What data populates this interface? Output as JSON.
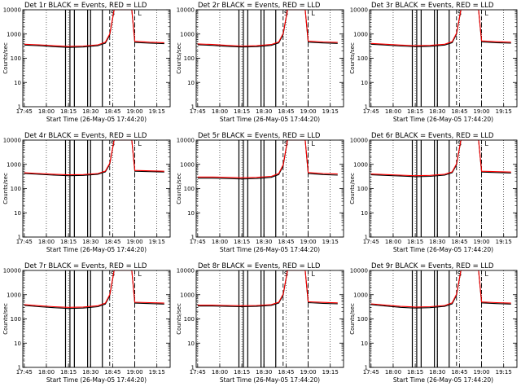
{
  "chart_data": [
    {
      "type": "line",
      "title": "Det 1r BLACK = Events, RED = LLD",
      "ylabel": "Counts/sec",
      "xlabel": "Start Time (26-May-05 17:44:20)",
      "y_scale": "log",
      "ylim": [
        1,
        10000
      ],
      "y_ticks": [
        "1",
        "10",
        "100",
        "1000",
        "10000"
      ],
      "x_ticks": [
        "17:45",
        "18:00",
        "18:15",
        "18:30",
        "18:45",
        "19:00",
        "19:15"
      ],
      "markers": [
        "S",
        "L"
      ],
      "series": [
        {
          "name": "Events",
          "color": "#000000",
          "x": [
            "17:45",
            "17:55",
            "18:05",
            "18:15",
            "18:25",
            "18:35",
            "18:40",
            "18:43",
            "18:46",
            "18:50",
            "18:58",
            "19:00",
            "19:10",
            "19:20"
          ],
          "values": [
            350,
            330,
            300,
            280,
            290,
            330,
            420,
            900,
            10000,
            10000,
            10000,
            450,
            420,
            400
          ]
        },
        {
          "name": "LLD",
          "color": "#ff0000",
          "x": [
            "17:45",
            "17:55",
            "18:05",
            "18:15",
            "18:25",
            "18:35",
            "18:40",
            "18:43",
            "18:46",
            "18:50",
            "18:58",
            "19:00",
            "19:10",
            "19:20"
          ],
          "values": [
            380,
            360,
            330,
            310,
            320,
            360,
            460,
            1000,
            10000,
            10000,
            10000,
            500,
            460,
            440
          ]
        }
      ]
    },
    {
      "type": "line",
      "title": "Det 2r BLACK = Events, RED = LLD",
      "ylabel": "Counts/sec",
      "xlabel": "Start Time (26-May-05 17:44:20)",
      "y_scale": "log",
      "ylim": [
        1,
        10000
      ],
      "y_ticks": [
        "1",
        "10",
        "100",
        "1000",
        "10000"
      ],
      "x_ticks": [
        "17:45",
        "18:00",
        "18:15",
        "18:30",
        "18:45",
        "19:00",
        "19:15"
      ],
      "markers": [
        "S",
        "L"
      ],
      "series": [
        {
          "name": "Events",
          "color": "#000000",
          "x": [
            "17:45",
            "17:55",
            "18:05",
            "18:15",
            "18:25",
            "18:35",
            "18:40",
            "18:43",
            "18:46",
            "18:50",
            "18:58",
            "19:00",
            "19:10",
            "19:20"
          ],
          "values": [
            360,
            340,
            310,
            290,
            300,
            340,
            430,
            950,
            10000,
            10000,
            10000,
            460,
            430,
            410
          ]
        },
        {
          "name": "LLD",
          "color": "#ff0000",
          "x": [
            "17:45",
            "17:55",
            "18:05",
            "18:15",
            "18:25",
            "18:35",
            "18:40",
            "18:43",
            "18:46",
            "18:50",
            "18:58",
            "19:00",
            "19:10",
            "19:20"
          ],
          "values": [
            390,
            370,
            340,
            320,
            330,
            370,
            470,
            1050,
            10000,
            10000,
            10000,
            510,
            470,
            450
          ]
        }
      ]
    },
    {
      "type": "line",
      "title": "Det 3r BLACK = Events, RED = LLD",
      "ylabel": "Counts/sec",
      "xlabel": "Start Time (26-May-05 17:44:20)",
      "y_scale": "log",
      "ylim": [
        1,
        10000
      ],
      "y_ticks": [
        "1",
        "10",
        "100",
        "1000",
        "10000"
      ],
      "x_ticks": [
        "17:45",
        "18:00",
        "18:15",
        "18:30",
        "18:45",
        "19:00",
        "19:15"
      ],
      "markers": [
        "S",
        "L"
      ],
      "series": [
        {
          "name": "Events",
          "color": "#000000",
          "x": [
            "17:45",
            "17:55",
            "18:05",
            "18:15",
            "18:25",
            "18:35",
            "18:40",
            "18:43",
            "18:46",
            "18:50",
            "18:58",
            "19:00",
            "19:10",
            "19:20"
          ],
          "values": [
            380,
            350,
            320,
            300,
            310,
            350,
            440,
            980,
            10000,
            10000,
            10000,
            470,
            440,
            420
          ]
        },
        {
          "name": "LLD",
          "color": "#ff0000",
          "x": [
            "17:45",
            "17:55",
            "18:05",
            "18:15",
            "18:25",
            "18:35",
            "18:40",
            "18:43",
            "18:46",
            "18:50",
            "18:58",
            "19:00",
            "19:10",
            "19:20"
          ],
          "values": [
            410,
            380,
            350,
            330,
            340,
            380,
            480,
            1080,
            10000,
            10000,
            10000,
            520,
            480,
            460
          ]
        }
      ]
    },
    {
      "type": "line",
      "title": "Det 4r BLACK = Events, RED = LLD",
      "ylabel": "Counts/sec",
      "xlabel": "Start Time (26-May-05 17:44:20)",
      "y_scale": "log",
      "ylim": [
        1,
        10000
      ],
      "y_ticks": [
        "1",
        "10",
        "100",
        "1000",
        "10000"
      ],
      "x_ticks": [
        "17:45",
        "18:00",
        "18:15",
        "18:30",
        "18:45",
        "19:00",
        "19:15"
      ],
      "markers": [
        "S",
        "L"
      ],
      "series": [
        {
          "name": "Events",
          "color": "#000000",
          "x": [
            "17:45",
            "17:55",
            "18:05",
            "18:15",
            "18:25",
            "18:35",
            "18:40",
            "18:43",
            "18:46",
            "18:50",
            "18:58",
            "19:00",
            "19:10",
            "19:20"
          ],
          "values": [
            420,
            390,
            360,
            340,
            350,
            390,
            490,
            1000,
            10000,
            10000,
            10000,
            520,
            500,
            480
          ]
        },
        {
          "name": "LLD",
          "color": "#ff0000",
          "x": [
            "17:45",
            "17:55",
            "18:05",
            "18:15",
            "18:25",
            "18:35",
            "18:40",
            "18:43",
            "18:46",
            "18:50",
            "18:58",
            "19:00",
            "19:10",
            "19:20"
          ],
          "values": [
            450,
            420,
            390,
            370,
            380,
            420,
            530,
            1100,
            10000,
            10000,
            10000,
            560,
            540,
            520
          ]
        }
      ]
    },
    {
      "type": "line",
      "title": "Det 5r BLACK = Events, RED = LLD",
      "ylabel": "Counts/sec",
      "xlabel": "Start Time (26-May-05 17:44:20)",
      "y_scale": "log",
      "ylim": [
        1,
        10000
      ],
      "y_ticks": [
        "1",
        "10",
        "100",
        "1000",
        "10000"
      ],
      "x_ticks": [
        "17:45",
        "18:00",
        "18:15",
        "18:30",
        "18:45",
        "19:00",
        "19:15"
      ],
      "markers": [
        "S",
        "L"
      ],
      "series": [
        {
          "name": "Events",
          "color": "#000000",
          "x": [
            "17:45",
            "17:55",
            "18:05",
            "18:15",
            "18:25",
            "18:35",
            "18:40",
            "18:43",
            "18:46",
            "18:50",
            "18:58",
            "19:00",
            "19:10",
            "19:20"
          ],
          "values": [
            270,
            270,
            260,
            250,
            260,
            290,
            380,
            850,
            10000,
            10000,
            10000,
            420,
            380,
            360
          ]
        },
        {
          "name": "LLD",
          "color": "#ff0000",
          "x": [
            "17:45",
            "17:55",
            "18:05",
            "18:15",
            "18:25",
            "18:35",
            "18:40",
            "18:43",
            "18:46",
            "18:50",
            "18:58",
            "19:00",
            "19:10",
            "19:20"
          ],
          "values": [
            300,
            300,
            290,
            280,
            290,
            320,
            420,
            950,
            10000,
            10000,
            10000,
            460,
            420,
            400
          ]
        }
      ]
    },
    {
      "type": "line",
      "title": "Det 6r BLACK = Events, RED = LLD",
      "ylabel": "Counts/sec",
      "xlabel": "Start Time (26-May-05 17:44:20)",
      "y_scale": "log",
      "ylim": [
        1,
        10000
      ],
      "y_ticks": [
        "1",
        "10",
        "100",
        "1000",
        "10000"
      ],
      "x_ticks": [
        "17:45",
        "18:00",
        "18:15",
        "18:30",
        "18:45",
        "19:00",
        "19:15"
      ],
      "markers": [
        "S",
        "L"
      ],
      "series": [
        {
          "name": "Events",
          "color": "#000000",
          "x": [
            "17:45",
            "17:55",
            "18:05",
            "18:15",
            "18:25",
            "18:35",
            "18:40",
            "18:43",
            "18:46",
            "18:50",
            "18:58",
            "19:00",
            "19:10",
            "19:20"
          ],
          "values": [
            370,
            350,
            330,
            310,
            320,
            360,
            450,
            950,
            10000,
            10000,
            10000,
            480,
            460,
            440
          ]
        },
        {
          "name": "LLD",
          "color": "#ff0000",
          "x": [
            "17:45",
            "17:55",
            "18:05",
            "18:15",
            "18:25",
            "18:35",
            "18:40",
            "18:43",
            "18:46",
            "18:50",
            "18:58",
            "19:00",
            "19:10",
            "19:20"
          ],
          "values": [
            400,
            380,
            360,
            340,
            350,
            390,
            490,
            1050,
            10000,
            10000,
            10000,
            520,
            500,
            480
          ]
        }
      ]
    },
    {
      "type": "line",
      "title": "Det 7r BLACK = Events, RED = LLD",
      "ylabel": "Counts/sec",
      "xlabel": "Start Time (26-May-05 17:44:20)",
      "y_scale": "log",
      "ylim": [
        1,
        10000
      ],
      "y_ticks": [
        "1",
        "10",
        "100",
        "1000",
        "10000"
      ],
      "x_ticks": [
        "17:45",
        "18:00",
        "18:15",
        "18:30",
        "18:45",
        "19:00",
        "19:15"
      ],
      "markers": [
        "S",
        "L"
      ],
      "series": [
        {
          "name": "Events",
          "color": "#000000",
          "x": [
            "17:45",
            "17:55",
            "18:05",
            "18:15",
            "18:25",
            "18:35",
            "18:40",
            "18:43",
            "18:46",
            "18:50",
            "18:58",
            "19:00",
            "19:10",
            "19:20"
          ],
          "values": [
            360,
            320,
            290,
            270,
            280,
            320,
            410,
            900,
            10000,
            10000,
            10000,
            450,
            430,
            410
          ]
        },
        {
          "name": "LLD",
          "color": "#ff0000",
          "x": [
            "17:45",
            "17:55",
            "18:05",
            "18:15",
            "18:25",
            "18:35",
            "18:40",
            "18:43",
            "18:46",
            "18:50",
            "18:58",
            "19:00",
            "19:10",
            "19:20"
          ],
          "values": [
            390,
            350,
            320,
            300,
            310,
            350,
            450,
            1000,
            10000,
            10000,
            10000,
            490,
            470,
            450
          ]
        }
      ]
    },
    {
      "type": "line",
      "title": "Det 8r BLACK = Events, RED = LLD",
      "ylabel": "Counts/sec",
      "xlabel": "Start Time (26-May-05 17:44:20)",
      "y_scale": "log",
      "ylim": [
        1,
        10000
      ],
      "y_ticks": [
        "1",
        "10",
        "100",
        "1000",
        "10000"
      ],
      "x_ticks": [
        "17:45",
        "18:00",
        "18:15",
        "18:30",
        "18:45",
        "19:00",
        "19:15"
      ],
      "markers": [
        "S",
        "L"
      ],
      "series": [
        {
          "name": "Events",
          "color": "#000000",
          "x": [
            "17:45",
            "17:55",
            "18:05",
            "18:15",
            "18:25",
            "18:35",
            "18:40",
            "18:43",
            "18:46",
            "18:50",
            "18:58",
            "19:00",
            "19:10",
            "19:20"
          ],
          "values": [
            340,
            340,
            330,
            320,
            330,
            360,
            450,
            950,
            10000,
            10000,
            10000,
            470,
            440,
            420
          ]
        },
        {
          "name": "LLD",
          "color": "#ff0000",
          "x": [
            "17:45",
            "17:55",
            "18:05",
            "18:15",
            "18:25",
            "18:35",
            "18:40",
            "18:43",
            "18:46",
            "18:50",
            "18:58",
            "19:00",
            "19:10",
            "19:20"
          ],
          "values": [
            370,
            370,
            360,
            350,
            360,
            390,
            490,
            1050,
            10000,
            10000,
            10000,
            510,
            480,
            460
          ]
        }
      ]
    },
    {
      "type": "line",
      "title": "Det 9r BLACK = Events, RED = LLD",
      "ylabel": "Counts/sec",
      "xlabel": "Start Time (26-May-05 17:44:20)",
      "y_scale": "log",
      "ylim": [
        1,
        10000
      ],
      "y_ticks": [
        "1",
        "10",
        "100",
        "1000",
        "10000"
      ],
      "x_ticks": [
        "17:45",
        "18:00",
        "18:15",
        "18:30",
        "18:45",
        "19:00",
        "19:15"
      ],
      "markers": [
        "S",
        "L"
      ],
      "series": [
        {
          "name": "Events",
          "color": "#000000",
          "x": [
            "17:45",
            "17:55",
            "18:05",
            "18:15",
            "18:25",
            "18:35",
            "18:40",
            "18:43",
            "18:46",
            "18:50",
            "18:58",
            "19:00",
            "19:10",
            "19:20"
          ],
          "values": [
            390,
            340,
            300,
            280,
            290,
            330,
            420,
            950,
            10000,
            10000,
            10000,
            460,
            430,
            410
          ]
        },
        {
          "name": "LLD",
          "color": "#ff0000",
          "x": [
            "17:45",
            "17:55",
            "18:05",
            "18:15",
            "18:25",
            "18:35",
            "18:40",
            "18:43",
            "18:46",
            "18:50",
            "18:58",
            "19:00",
            "19:10",
            "19:20"
          ],
          "values": [
            420,
            370,
            330,
            310,
            320,
            360,
            460,
            1050,
            10000,
            10000,
            10000,
            500,
            470,
            450
          ]
        }
      ]
    }
  ]
}
